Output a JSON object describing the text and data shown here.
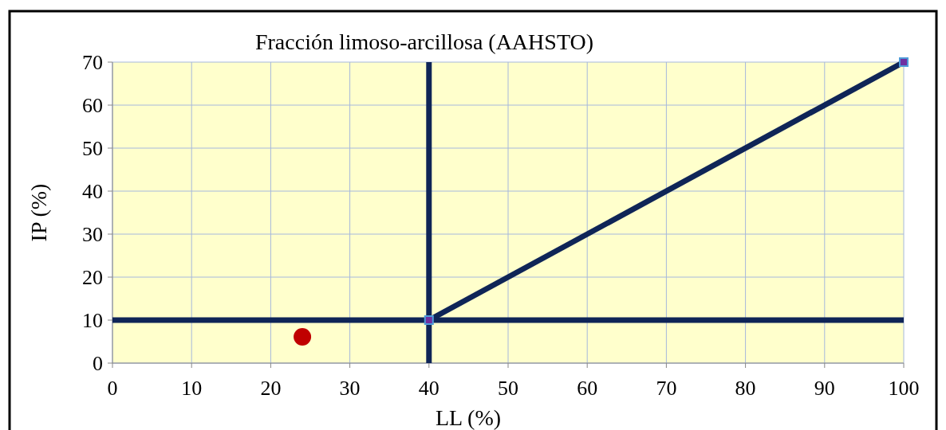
{
  "chart_data": {
    "type": "line",
    "title": "Fracción limoso-arcillosa (AAHSTO)",
    "xlabel": "LL (%)",
    "ylabel": "IP (%)",
    "xlim": [
      0,
      100
    ],
    "xticks": [
      0,
      10,
      20,
      30,
      40,
      50,
      60,
      70,
      80,
      90,
      100
    ],
    "ylim": [
      0,
      70
    ],
    "yticks": [
      0,
      10,
      20,
      30,
      40,
      50,
      60,
      70
    ],
    "grid": true,
    "series": [
      {
        "color": "#0f2557",
        "x": [
          40,
          40
        ],
        "values": [
          0,
          70
        ],
        "marker": "none"
      },
      {
        "color": "#0f2557",
        "x": [
          0,
          100
        ],
        "values": [
          10,
          10
        ],
        "marker": "none"
      },
      {
        "color": "#0f2557",
        "x": [
          40,
          100
        ],
        "values": [
          10,
          70
        ],
        "marker": "square"
      },
      {
        "type": "scatter",
        "color": "#c00000",
        "x": [
          24
        ],
        "values": [
          6.1
        ],
        "marker": "circle"
      }
    ]
  }
}
